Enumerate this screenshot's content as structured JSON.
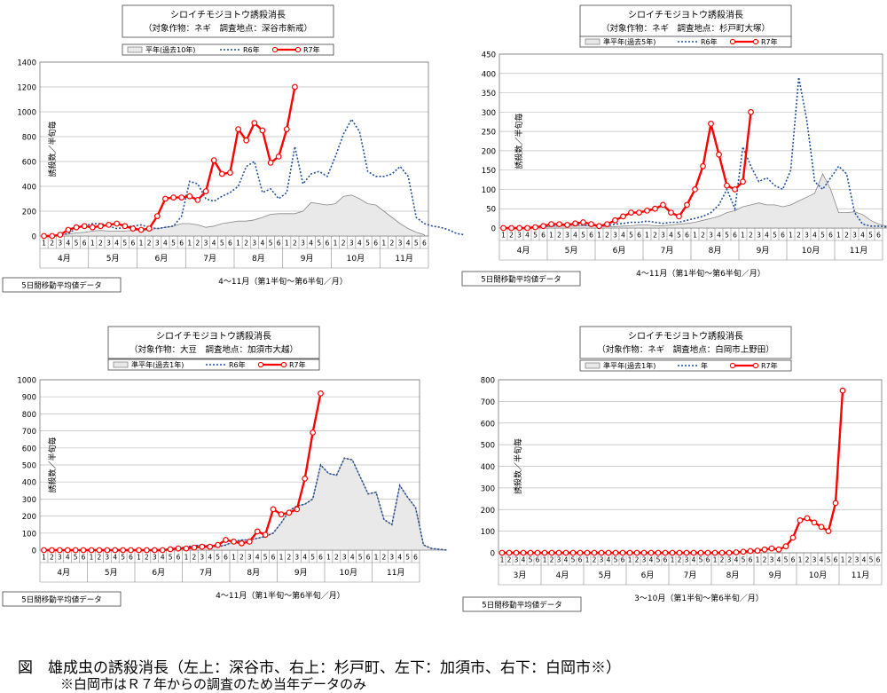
{
  "chart_data": [
    {
      "type": "area",
      "title": "シロイチモジヨトウ誘殺消長",
      "subtitle": "（対象作物：ネギ　調査地点：深谷市新戒）",
      "ylabel": "誘殺数／半旬毎",
      "xlabel": "4～11月（第1半旬～第6半旬／月）",
      "note": "5日間移動平均値データ",
      "months": [
        "4月",
        "5月",
        "6月",
        "7月",
        "8月",
        "9月",
        "10月",
        "11月"
      ],
      "ylim": [
        0,
        1400
      ],
      "yticks": [
        0,
        200,
        400,
        600,
        800,
        1000,
        1200,
        1400
      ],
      "legend": [
        "平年(過去10年)",
        "R6年",
        "R7年"
      ],
      "series": [
        {
          "name": "平年(過去10年)",
          "style": "area",
          "values": [
            0,
            5,
            10,
            15,
            25,
            30,
            40,
            45,
            40,
            40,
            40,
            45,
            50,
            55,
            60,
            70,
            80,
            100,
            100,
            90,
            70,
            80,
            100,
            110,
            120,
            120,
            130,
            150,
            175,
            180,
            180,
            180,
            200,
            270,
            260,
            250,
            260,
            320,
            330,
            300,
            260,
            250,
            200,
            150,
            100,
            60,
            30,
            10
          ]
        },
        {
          "name": "R6年",
          "style": "dotted",
          "values": [
            0,
            0,
            10,
            20,
            60,
            80,
            100,
            100,
            80,
            60,
            70,
            80,
            90,
            70,
            60,
            70,
            80,
            160,
            440,
            420,
            300,
            280,
            320,
            350,
            400,
            560,
            600,
            350,
            380,
            300,
            350,
            720,
            420,
            500,
            520,
            480,
            640,
            820,
            940,
            840,
            520,
            480,
            480,
            500,
            560,
            480,
            150,
            100,
            80,
            70,
            50,
            20,
            10
          ]
        },
        {
          "name": "R7年",
          "style": "line",
          "values": [
            0,
            0,
            10,
            50,
            70,
            80,
            70,
            80,
            90,
            100,
            80,
            60,
            50,
            60,
            160,
            300,
            310,
            310,
            320,
            290,
            360,
            610,
            500,
            510,
            860,
            770,
            910,
            850,
            590,
            640,
            860,
            1200
          ]
        }
      ]
    },
    {
      "type": "area",
      "title": "シロイチモジヨトウ誘殺消長",
      "subtitle": "（対象作物：ネギ　調査地点：杉戸町大塚）",
      "ylabel": "誘殺数／半旬毎",
      "xlabel": "4～11月（第1半旬～第6半旬／月）",
      "note": "5日間移動平均値データ",
      "months": [
        "4月",
        "5月",
        "6月",
        "7月",
        "8月",
        "9月",
        "10月",
        "11月"
      ],
      "ylim": [
        0,
        450
      ],
      "yticks": [
        0,
        50,
        100,
        150,
        200,
        250,
        300,
        350,
        400,
        450
      ],
      "legend": [
        "準平年(過去5年)",
        "R6年",
        "R7年"
      ],
      "series": [
        {
          "name": "準平年(過去5年)",
          "style": "area",
          "values": [
            0,
            0,
            0,
            0,
            2,
            3,
            4,
            5,
            5,
            5,
            6,
            6,
            5,
            4,
            4,
            5,
            6,
            8,
            8,
            6,
            6,
            8,
            10,
            12,
            15,
            20,
            25,
            30,
            40,
            45,
            55,
            60,
            65,
            60,
            60,
            55,
            60,
            70,
            80,
            90,
            140,
            100,
            40,
            40,
            42,
            35,
            20,
            10,
            5,
            3,
            2,
            0
          ]
        },
        {
          "name": "R6年",
          "style": "dotted",
          "values": [
            0,
            0,
            0,
            2,
            3,
            5,
            6,
            6,
            8,
            10,
            8,
            6,
            5,
            6,
            10,
            12,
            15,
            15,
            18,
            15,
            12,
            15,
            15,
            20,
            25,
            30,
            40,
            60,
            100,
            50,
            210,
            160,
            120,
            130,
            110,
            100,
            150,
            390,
            280,
            120,
            100,
            130,
            160,
            140,
            40,
            10,
            5,
            5,
            3,
            2,
            0
          ]
        },
        {
          "name": "R7年",
          "style": "line",
          "values": [
            0,
            0,
            0,
            0,
            2,
            5,
            10,
            10,
            8,
            12,
            15,
            10,
            5,
            10,
            20,
            30,
            40,
            40,
            45,
            50,
            60,
            40,
            30,
            60,
            100,
            160,
            270,
            190,
            110,
            100,
            120,
            300
          ]
        }
      ]
    },
    {
      "type": "area",
      "title": "シロイチモジヨトウ誘殺消長",
      "subtitle": "（対象作物：大豆　調査地点：加須市大越）",
      "ylabel": "誘殺数／半旬毎",
      "xlabel": "4～11月（第1半旬～第6半旬／月）",
      "note": "5日間移動平均値データ",
      "months": [
        "4月",
        "5月",
        "6月",
        "7月",
        "8月",
        "9月",
        "10月",
        "11月"
      ],
      "ylim": [
        0,
        1000
      ],
      "yticks": [
        0,
        100,
        200,
        300,
        400,
        500,
        600,
        700,
        800,
        900,
        1000
      ],
      "legend": [
        "準平年(過去1年)",
        "R6年",
        "R7年"
      ],
      "series": [
        {
          "name": "準平年(過去1年)",
          "style": "area",
          "values": [
            0,
            0,
            0,
            0,
            0,
            0,
            0,
            0,
            0,
            0,
            0,
            0,
            0,
            0,
            0,
            2,
            5,
            10,
            20,
            25,
            30,
            25,
            20,
            30,
            50,
            60,
            60,
            70,
            80,
            100,
            160,
            230,
            260,
            270,
            300,
            500,
            450,
            440,
            540,
            530,
            430,
            330,
            340,
            180,
            150,
            380,
            310,
            250,
            30,
            10,
            5,
            0
          ]
        },
        {
          "name": "R6年",
          "style": "dotted",
          "values": [
            0,
            0,
            0,
            0,
            0,
            0,
            0,
            0,
            0,
            0,
            0,
            0,
            0,
            0,
            0,
            2,
            5,
            10,
            20,
            25,
            30,
            25,
            20,
            30,
            50,
            60,
            60,
            70,
            80,
            100,
            160,
            230,
            260,
            270,
            300,
            500,
            450,
            440,
            540,
            530,
            430,
            330,
            340,
            180,
            150,
            380,
            310,
            250,
            30,
            10,
            5,
            0
          ]
        },
        {
          "name": "R7年",
          "style": "line",
          "values": [
            0,
            0,
            0,
            0,
            0,
            0,
            0,
            0,
            0,
            0,
            0,
            0,
            0,
            0,
            0,
            0,
            5,
            10,
            10,
            15,
            20,
            20,
            30,
            60,
            50,
            40,
            50,
            110,
            90,
            240,
            210,
            220,
            240,
            420,
            690,
            920
          ]
        }
      ]
    },
    {
      "type": "line",
      "title": "シロイチモジヨトウ誘殺消長",
      "subtitle": "（対象作物：ネギ　調査地点：白岡市上野田）",
      "ylabel": "誘殺数／半旬毎",
      "xlabel": "3～10月（第1半旬～第6半旬／月）",
      "note": "5日間移動平均値データ",
      "months": [
        "3月",
        "4月",
        "5月",
        "6月",
        "7月",
        "8月",
        "9月",
        "10月",
        "11月"
      ],
      "ylim": [
        0,
        800
      ],
      "yticks": [
        0,
        100,
        200,
        300,
        400,
        500,
        600,
        700,
        800
      ],
      "legend": [
        "準平年(過去1年)",
        "年",
        "R7年"
      ],
      "series": [
        {
          "name": "R7年",
          "style": "line",
          "values": [
            0,
            0,
            0,
            0,
            0,
            0,
            0,
            0,
            0,
            0,
            0,
            0,
            0,
            0,
            0,
            0,
            0,
            0,
            0,
            0,
            0,
            0,
            0,
            0,
            0,
            0,
            0,
            0,
            0,
            0,
            0,
            0,
            0,
            2,
            5,
            8,
            10,
            15,
            20,
            15,
            30,
            70,
            150,
            160,
            140,
            120,
            100,
            230,
            750
          ]
        }
      ]
    }
  ],
  "caption": "図　雄成虫の誘殺消長（左上：深谷市、右上：杉戸町、左下：加須市、右下：白岡市※）",
  "caption_note": "※白岡市はＲ７年からの調査のため当年データのみ",
  "colors": {
    "r7": "#ff0000",
    "r6": "#1f4e9c",
    "area_fill": "#e9e9e9",
    "area_line": "#888888"
  }
}
